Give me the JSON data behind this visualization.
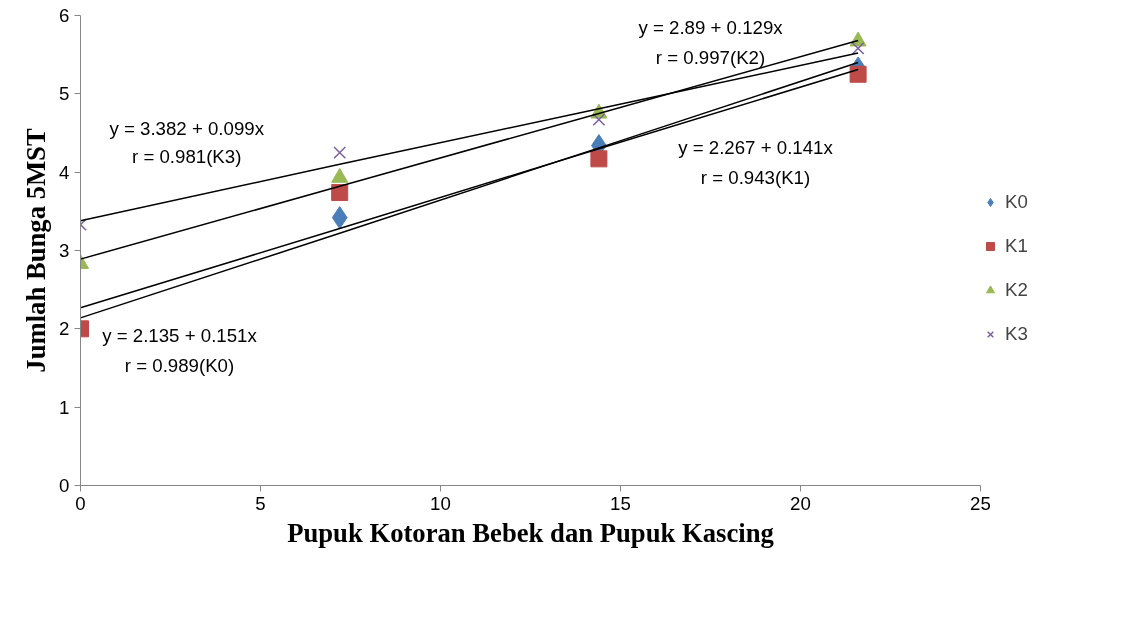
{
  "chart_data": {
    "type": "scatter",
    "xlabel": "Pupuk Kotoran Bebek dan Pupuk Kascing",
    "ylabel": "Jumlah Bunga 5MST",
    "x": [
      0,
      7.2,
      14.4,
      21.6
    ],
    "series": [
      {
        "name": "K0",
        "color": "#4a7ebb",
        "marker": "diamond",
        "values": [
          null,
          3.42,
          4.34,
          5.33
        ]
      },
      {
        "name": "K1",
        "color": "#be4b48",
        "marker": "square",
        "values": [
          2.0,
          3.74,
          4.17,
          5.25
        ]
      },
      {
        "name": "K2",
        "color": "#98b954",
        "marker": "triangle",
        "values": [
          2.83,
          3.93,
          4.75,
          5.67
        ]
      },
      {
        "name": "K3",
        "color": "#7d60a0",
        "marker": "cross",
        "values": [
          3.33,
          4.25,
          4.67,
          5.58
        ]
      },
      {
        "type": "line",
        "color": "#000000",
        "values": [
          2.14,
          3.22,
          4.31,
          5.4
        ]
      },
      {
        "type": "line",
        "color": "#000000",
        "values": [
          2.27,
          3.28,
          4.3,
          5.31
        ]
      },
      {
        "type": "line",
        "color": "#000000",
        "values": [
          2.89,
          3.82,
          4.75,
          5.68
        ]
      },
      {
        "type": "line",
        "color": "#000000",
        "values": [
          3.38,
          4.1,
          4.81,
          5.52
        ]
      }
    ],
    "annotations": [
      "y = 3.382 + 0.099x",
      "r = 0.981(K3)",
      "y = 2.89 + 0.129x",
      "r = 0.997(K2)",
      "y = 2.267 + 0.141x",
      "r = 0.943(K1)",
      "y = 2.135 + 0.151x",
      "r = 0.989(K0)"
    ],
    "xlim": [
      0,
      25
    ],
    "xticks": [
      0,
      5,
      10,
      15,
      20,
      25
    ],
    "ylim": [
      0,
      6
    ],
    "yticks": [
      0,
      1,
      2,
      3,
      4,
      5,
      6
    ],
    "grid": false,
    "legend": "right",
    "line_style": "solid"
  }
}
